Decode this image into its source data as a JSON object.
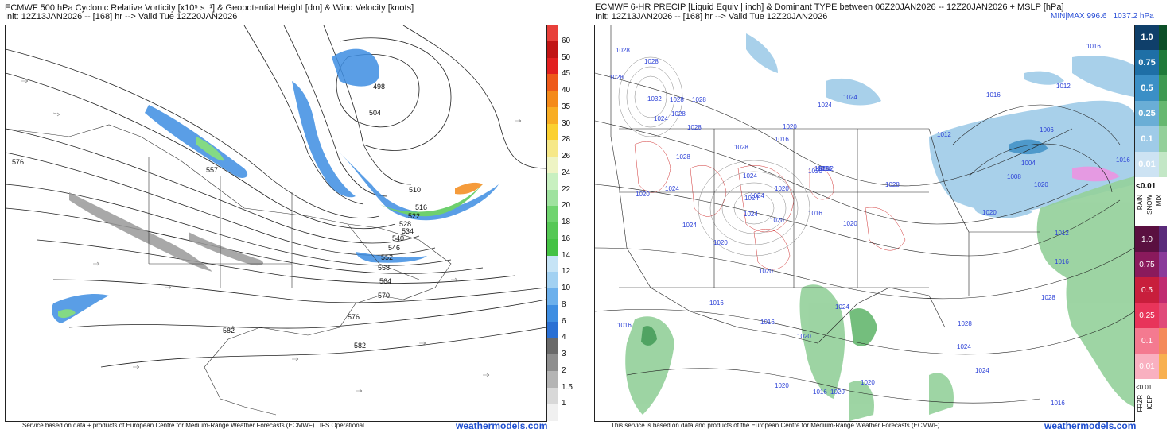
{
  "left_panel": {
    "title_line1": "ECMWF 500 hPa Cyclonic Relative Vorticity [x10⁵ s⁻¹] & Geopotential Height [dm] & Wind Velocity [knots]",
    "title_line2": "Init: 12Z13JAN2026 -- [168] hr --> Valid Tue 12Z20JAN2026",
    "footer": "Service based on data + products of European Centre for Medium-Range Weather Forecasts (ECMWF) | IFS Operational",
    "brand": "weathermodels.com",
    "height_labels": [
      "498",
      "504",
      "510",
      "516",
      "522",
      "528",
      "534",
      "540",
      "546",
      "552",
      "558",
      "564",
      "570",
      "576",
      "582",
      "576",
      "557",
      "582"
    ],
    "colorbar": {
      "labels": [
        "60",
        "50",
        "45",
        "40",
        "35",
        "30",
        "28",
        "26",
        "24",
        "22",
        "20",
        "18",
        "16",
        "14",
        "12",
        "10",
        "8",
        "6",
        "4",
        "3",
        "2",
        "1.5",
        "1"
      ],
      "colors": [
        "#e8403a",
        "#c11414",
        "#e22020",
        "#ee5a1a",
        "#f48a1a",
        "#f8ad24",
        "#fbd030",
        "#f6e888",
        "#eef4c4",
        "#c8f0c0",
        "#9fe29f",
        "#6fd46f",
        "#55c855",
        "#44c244",
        "#c6e4f6",
        "#a2d1f2",
        "#6cb0ec",
        "#3e8ee2",
        "#2a70d4",
        "#6a6a6a",
        "#8e8e8e",
        "#b4b4b4",
        "#d8d8d8",
        "#f0f0f0"
      ]
    }
  },
  "right_panel": {
    "title_line1": "ECMWF 6-HR PRECIP [Liquid Equiv | inch] & Dominant TYPE between 06Z20JAN2026 -- 12Z20JAN2026 + MSLP [hPa]",
    "title_line2": "Init: 12Z13JAN2026 -- [168] hr --> Valid Tue 12Z20JAN2026",
    "minmax": "MIN|MAX 996.6 | 1037.2 hPa",
    "footer": "This service is based on data and products of the European Centre for Medium-Range Weather Forecasts (ECMWF)",
    "brand": "weathermodels.com",
    "pressure_labels": [
      "1028",
      "1028",
      "1028",
      "1032",
      "1028",
      "1028",
      "1028",
      "1024",
      "1028",
      "1020",
      "1024",
      "1020",
      "1016",
      "1020",
      "1024",
      "1028",
      "1028",
      "1024",
      "1024",
      "1028",
      "1020",
      "1024",
      "1024",
      "1020",
      "1024",
      "1020",
      "1016",
      "1016",
      "1020",
      "1020",
      "1024",
      "1012",
      "1028",
      "1024",
      "1020",
      "1016",
      "1020",
      "1016",
      "1008",
      "1004",
      "1012",
      "1016",
      "1012",
      "1006",
      "1016",
      "1016",
      "1024",
      "1020",
      "1012",
      "1016",
      "1020",
      "1016",
      "1020",
      "1016",
      "1028",
      "1024",
      "1020",
      "1016",
      "1020"
    ],
    "colorbar": {
      "snow": {
        "labels": [
          "1.0",
          "0.75",
          "0.5",
          "0.25",
          "0.1",
          "0.01"
        ],
        "colors": [
          "#0f3f6a",
          "#1e6fa6",
          "#3b8fc6",
          "#6aaed6",
          "#9fcbe8",
          "#cde3f3"
        ]
      },
      "rain": {
        "labels": [
          "1.0",
          "0.75",
          "0.5",
          "0.25",
          "0.1",
          "0.01"
        ],
        "colors": [
          "#0c4f28",
          "#1f7a3a",
          "#3e9a52",
          "#66b870",
          "#93d09a",
          "#c3e7c6"
        ]
      },
      "rain_snow_lt": "<0.01",
      "rain_label": "RAIN",
      "snow_label": "SNOW",
      "mix_label": "MIX",
      "frzr": {
        "labels": [
          "1.0",
          "0.75",
          "0.5",
          "0.25",
          "0.1",
          "0.01"
        ],
        "colors": [
          "#5a1040",
          "#8a1a5c",
          "#c81e3c",
          "#e8345a",
          "#f47a90",
          "#f9b0c0"
        ]
      },
      "icep_colors": [
        "#5a2a7a",
        "#8a3a9a",
        "#c02a70",
        "#e04a7a",
        "#f48a5a",
        "#f8b050"
      ],
      "frzr_icep_lt": "<0.01",
      "frzr_label": "FRZR",
      "icep_label": "ICEP"
    }
  }
}
